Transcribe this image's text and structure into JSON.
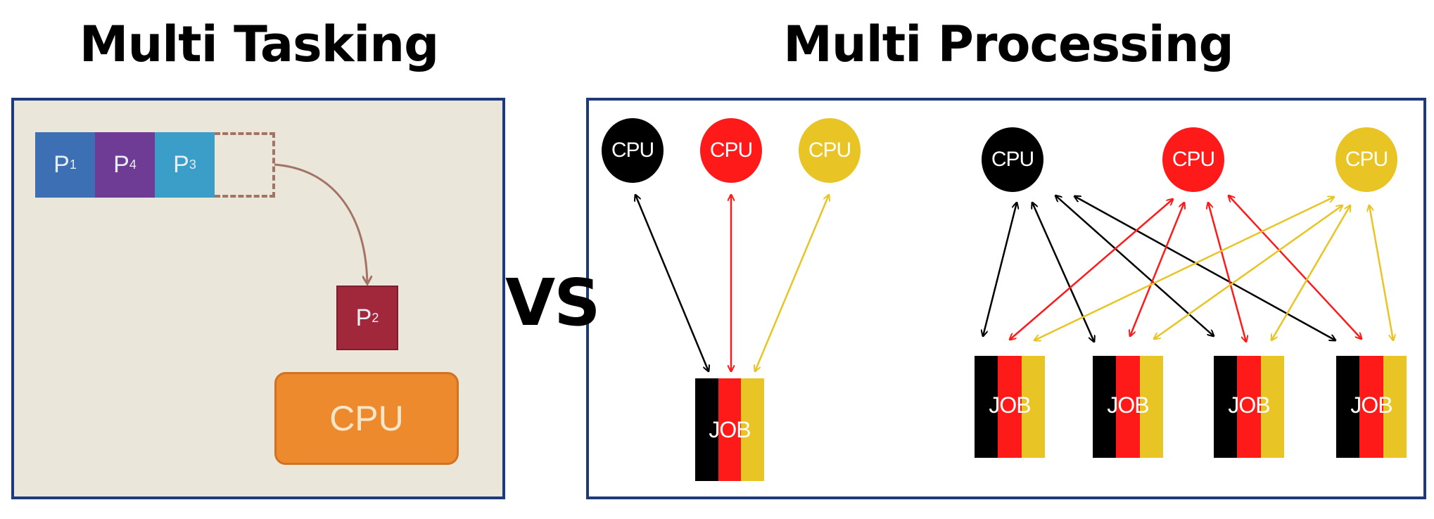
{
  "titles": {
    "left": "Multi Tasking",
    "right": "Multi Processing"
  },
  "vs": "VS",
  "multitasking": {
    "queue": [
      {
        "name": "P",
        "sub": "1",
        "color": "#3d6fb5"
      },
      {
        "name": "P",
        "sub": "4",
        "color": "#6e3b95"
      },
      {
        "name": "P",
        "sub": "3",
        "color": "#3a9ec8"
      }
    ],
    "running": {
      "name": "P",
      "sub": "2",
      "color": "#a1283a"
    },
    "cpu_label": "CPU"
  },
  "multiprocessing": {
    "single": {
      "cpus": [
        {
          "label": "CPU",
          "color": "#000000"
        },
        {
          "label": "CPU",
          "color": "#ff1a1a"
        },
        {
          "label": "CPU",
          "color": "#e8c424"
        }
      ],
      "job_label": "JOB"
    },
    "multi": {
      "cpus": [
        {
          "label": "CPU",
          "color": "#000000"
        },
        {
          "label": "CPU",
          "color": "#ff1a1a"
        },
        {
          "label": "CPU",
          "color": "#e8c424"
        }
      ],
      "jobs": [
        "JOB",
        "JOB",
        "JOB",
        "JOB"
      ]
    },
    "job_colors": [
      "#000000",
      "#ff1a1a",
      "#e8c424"
    ]
  }
}
